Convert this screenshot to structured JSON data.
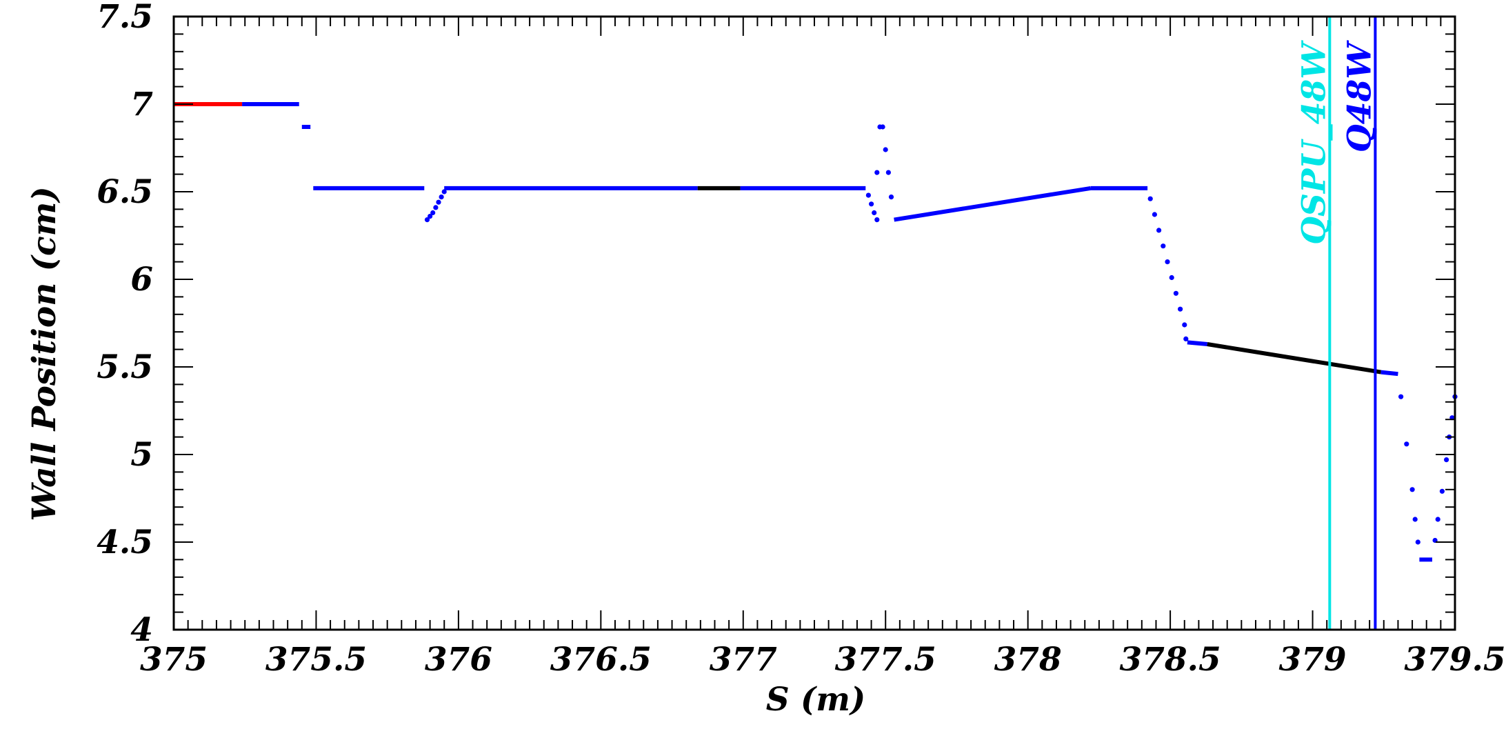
{
  "chart_data": {
    "type": "scatter",
    "title": "",
    "xlabel": "S (m)",
    "ylabel": "Wall Position (cm)",
    "xlim": [
      375,
      379.5
    ],
    "ylim": [
      4,
      7.5
    ],
    "x_ticks": [
      375,
      375.5,
      376,
      376.5,
      377,
      377.5,
      378,
      378.5,
      379,
      379.5
    ],
    "x_tick_labels": [
      "375",
      "375.5",
      "376",
      "376.5",
      "377",
      "377.5",
      "378",
      "378.5",
      "379",
      "379.5"
    ],
    "y_ticks": [
      4,
      4.5,
      5,
      5.5,
      6,
      6.5,
      7,
      7.5
    ],
    "y_tick_labels": [
      "4",
      "4.5",
      "5",
      "5.5",
      "6",
      "6.5",
      "7",
      "7.5"
    ],
    "grid": false,
    "legend": "none",
    "colors": {
      "red": "#ff0000",
      "blue": "#0000ff",
      "black": "#000000",
      "cyan": "#00e5e5",
      "marker_blue": "#0000ff"
    },
    "markers": [
      {
        "label": "QSPU_48W",
        "s": 379.06,
        "color": "cyan"
      },
      {
        "label": "Q48W",
        "s": 379.22,
        "color": "marker_blue"
      }
    ],
    "series": [
      {
        "color": "red",
        "kind": "line",
        "points": [
          [
            375.0,
            7.0
          ],
          [
            375.24,
            7.0
          ]
        ]
      },
      {
        "color": "blue",
        "kind": "line",
        "points": [
          [
            375.24,
            7.0
          ],
          [
            375.44,
            7.0
          ]
        ]
      },
      {
        "color": "blue",
        "kind": "line",
        "points": [
          [
            375.45,
            6.87
          ],
          [
            375.48,
            6.87
          ]
        ]
      },
      {
        "color": "blue",
        "kind": "line",
        "points": [
          [
            375.49,
            6.52
          ],
          [
            375.88,
            6.52
          ]
        ]
      },
      {
        "color": "blue",
        "kind": "dots",
        "points": [
          [
            375.89,
            6.34
          ],
          [
            375.9,
            6.36
          ],
          [
            375.91,
            6.38
          ],
          [
            375.92,
            6.41
          ],
          [
            375.93,
            6.44
          ],
          [
            375.94,
            6.47
          ],
          [
            375.95,
            6.5
          ]
        ]
      },
      {
        "color": "blue",
        "kind": "line",
        "points": [
          [
            375.95,
            6.52
          ],
          [
            376.84,
            6.52
          ]
        ]
      },
      {
        "color": "black",
        "kind": "line",
        "points": [
          [
            376.84,
            6.52
          ],
          [
            376.99,
            6.52
          ]
        ]
      },
      {
        "color": "blue",
        "kind": "line",
        "points": [
          [
            376.99,
            6.52
          ],
          [
            377.43,
            6.52
          ]
        ]
      },
      {
        "color": "blue",
        "kind": "dots",
        "points": [
          [
            377.44,
            6.48
          ],
          [
            377.45,
            6.43
          ],
          [
            377.46,
            6.38
          ],
          [
            377.47,
            6.34
          ],
          [
            377.47,
            6.61
          ],
          [
            377.48,
            6.87
          ],
          [
            377.49,
            6.87
          ],
          [
            377.5,
            6.74
          ],
          [
            377.51,
            6.61
          ],
          [
            377.52,
            6.47
          ]
        ]
      },
      {
        "color": "blue",
        "kind": "line",
        "points": [
          [
            377.53,
            6.34
          ],
          [
            378.22,
            6.52
          ]
        ]
      },
      {
        "color": "blue",
        "kind": "line",
        "points": [
          [
            378.22,
            6.52
          ],
          [
            378.42,
            6.52
          ]
        ]
      },
      {
        "color": "blue",
        "kind": "dots",
        "points": [
          [
            378.43,
            6.46
          ],
          [
            378.445,
            6.37
          ],
          [
            378.46,
            6.28
          ],
          [
            378.475,
            6.19
          ],
          [
            378.49,
            6.1
          ],
          [
            378.505,
            6.01
          ],
          [
            378.52,
            5.92
          ],
          [
            378.535,
            5.83
          ],
          [
            378.55,
            5.74
          ],
          [
            378.555,
            5.66
          ]
        ]
      },
      {
        "color": "blue",
        "kind": "line",
        "points": [
          [
            378.56,
            5.64
          ],
          [
            378.63,
            5.63
          ]
        ]
      },
      {
        "color": "black",
        "kind": "line",
        "points": [
          [
            378.63,
            5.63
          ],
          [
            379.24,
            5.47
          ]
        ]
      },
      {
        "color": "blue",
        "kind": "line",
        "points": [
          [
            379.24,
            5.47
          ],
          [
            379.3,
            5.46
          ]
        ]
      },
      {
        "color": "blue",
        "kind": "dots",
        "points": [
          [
            379.31,
            5.33
          ],
          [
            379.33,
            5.06
          ],
          [
            379.35,
            4.8
          ],
          [
            379.36,
            4.63
          ],
          [
            379.37,
            4.5
          ]
        ]
      },
      {
        "color": "blue",
        "kind": "line",
        "points": [
          [
            379.375,
            4.4
          ],
          [
            379.42,
            4.4
          ]
        ]
      },
      {
        "color": "blue",
        "kind": "dots",
        "points": [
          [
            379.43,
            4.51
          ],
          [
            379.44,
            4.63
          ],
          [
            379.455,
            4.79
          ],
          [
            379.47,
            4.97
          ],
          [
            379.48,
            5.1
          ],
          [
            379.49,
            5.21
          ],
          [
            379.5,
            5.33
          ]
        ]
      }
    ]
  }
}
